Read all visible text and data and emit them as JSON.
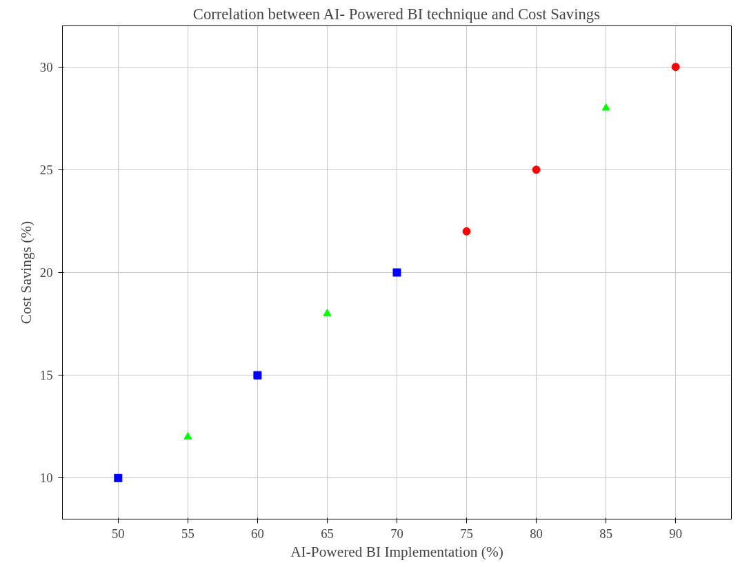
{
  "chart_data": {
    "type": "scatter",
    "title": "Correlation between AI- Powered BI technique and Cost Savings",
    "xlabel": "AI-Powered BI Implementation (%)",
    "ylabel": "Cost Savings (%)",
    "series": [
      {
        "color": "#0000ff",
        "marker": "square",
        "x": [
          50,
          60,
          70
        ],
        "values": [
          10,
          15,
          20
        ]
      },
      {
        "color": "#00ff00",
        "marker": "triangle",
        "x": [
          55,
          65,
          85
        ],
        "values": [
          12,
          18,
          28
        ]
      },
      {
        "color": "#ff0000",
        "marker": "circle",
        "x": [
          75,
          80,
          90
        ],
        "values": [
          22,
          25,
          30
        ]
      }
    ],
    "xlim": [
      46,
      94
    ],
    "xticks": [
      50,
      55,
      60,
      65,
      70,
      75,
      80,
      85,
      90
    ],
    "ylim": [
      8,
      32
    ],
    "yticks": [
      10,
      15,
      20,
      25,
      30
    ],
    "grid": true
  }
}
